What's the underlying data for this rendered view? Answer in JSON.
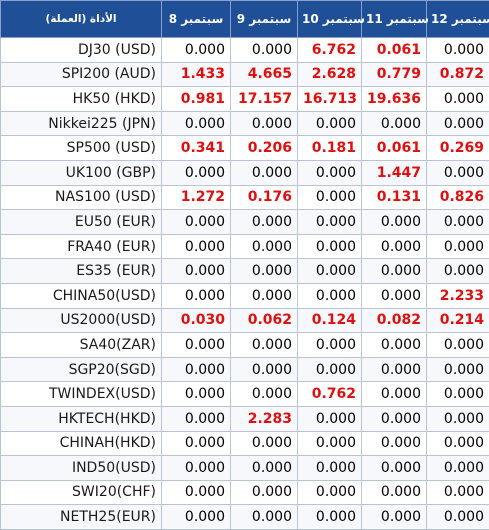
{
  "header": {
    "instrument": "(الأداة (العملة",
    "days": [
      "سبتمبر 8",
      "سبتمبر 9",
      "سبتمبر 10",
      "سبتمبر 11",
      "سبتمبر 12"
    ]
  },
  "colors": {
    "header_bg": "#1f4f96",
    "highlight": "#e01010"
  },
  "rows": [
    {
      "instrument": "DJ30 (USD)",
      "values": [
        "0.000",
        "0.000",
        "6.762",
        "0.061",
        "0.000"
      ],
      "highlight": [
        false,
        false,
        true,
        true,
        false
      ]
    },
    {
      "instrument": "SPI200 (AUD)",
      "values": [
        "1.433",
        "4.665",
        "2.628",
        "0.779",
        "0.872"
      ],
      "highlight": [
        true,
        true,
        true,
        true,
        true
      ]
    },
    {
      "instrument": "HK50 (HKD)",
      "values": [
        "0.981",
        "17.157",
        "16.713",
        "19.636",
        "0.000"
      ],
      "highlight": [
        true,
        true,
        true,
        true,
        false
      ]
    },
    {
      "instrument": "Nikkei225 (JPN)",
      "values": [
        "0.000",
        "0.000",
        "0.000",
        "0.000",
        "0.000"
      ],
      "highlight": [
        false,
        false,
        false,
        false,
        false
      ]
    },
    {
      "instrument": "SP500 (USD)",
      "values": [
        "0.341",
        "0.206",
        "0.181",
        "0.061",
        "0.269"
      ],
      "highlight": [
        true,
        true,
        true,
        true,
        true
      ]
    },
    {
      "instrument": "UK100 (GBP)",
      "values": [
        "0.000",
        "0.000",
        "0.000",
        "1.447",
        "0.000"
      ],
      "highlight": [
        false,
        false,
        false,
        true,
        false
      ]
    },
    {
      "instrument": "NAS100 (USD)",
      "values": [
        "1.272",
        "0.176",
        "0.000",
        "0.131",
        "0.826"
      ],
      "highlight": [
        true,
        true,
        false,
        true,
        true
      ]
    },
    {
      "instrument": "EU50 (EUR)",
      "values": [
        "0.000",
        "0.000",
        "0.000",
        "0.000",
        "0.000"
      ],
      "highlight": [
        false,
        false,
        false,
        false,
        false
      ]
    },
    {
      "instrument": "FRA40 (EUR)",
      "values": [
        "0.000",
        "0.000",
        "0.000",
        "0.000",
        "0.000"
      ],
      "highlight": [
        false,
        false,
        false,
        false,
        false
      ]
    },
    {
      "instrument": "ES35 (EUR)",
      "values": [
        "0.000",
        "0.000",
        "0.000",
        "0.000",
        "0.000"
      ],
      "highlight": [
        false,
        false,
        false,
        false,
        false
      ]
    },
    {
      "instrument": "CHINA50(USD)",
      "values": [
        "0.000",
        "0.000",
        "0.000",
        "0.000",
        "2.233"
      ],
      "highlight": [
        false,
        false,
        false,
        false,
        true
      ]
    },
    {
      "instrument": "US2000(USD)",
      "values": [
        "0.030",
        "0.062",
        "0.124",
        "0.082",
        "0.214"
      ],
      "highlight": [
        true,
        true,
        true,
        true,
        true
      ]
    },
    {
      "instrument": "SA40(ZAR)",
      "values": [
        "0.000",
        "0.000",
        "0.000",
        "0.000",
        "0.000"
      ],
      "highlight": [
        false,
        false,
        false,
        false,
        false
      ]
    },
    {
      "instrument": "SGP20(SGD)",
      "values": [
        "0.000",
        "0.000",
        "0.000",
        "0.000",
        "0.000"
      ],
      "highlight": [
        false,
        false,
        false,
        false,
        false
      ]
    },
    {
      "instrument": "TWINDEX(USD)",
      "values": [
        "0.000",
        "0.000",
        "0.762",
        "0.000",
        "0.000"
      ],
      "highlight": [
        false,
        false,
        true,
        false,
        false
      ]
    },
    {
      "instrument": "HKTECH(HKD)",
      "values": [
        "0.000",
        "2.283",
        "0.000",
        "0.000",
        "0.000"
      ],
      "highlight": [
        false,
        true,
        false,
        false,
        false
      ]
    },
    {
      "instrument": "CHINAH(HKD)",
      "values": [
        "0.000",
        "0.000",
        "0.000",
        "0.000",
        "0.000"
      ],
      "highlight": [
        false,
        false,
        false,
        false,
        false
      ]
    },
    {
      "instrument": "IND50(USD)",
      "values": [
        "0.000",
        "0.000",
        "0.000",
        "0.000",
        "0.000"
      ],
      "highlight": [
        false,
        false,
        false,
        false,
        false
      ]
    },
    {
      "instrument": "SWI20(CHF)",
      "values": [
        "0.000",
        "0.000",
        "0.000",
        "0.000",
        "0.000"
      ],
      "highlight": [
        false,
        false,
        false,
        false,
        false
      ]
    },
    {
      "instrument": "NETH25(EUR)",
      "values": [
        "0.000",
        "0.000",
        "0.000",
        "0.000",
        "0.000"
      ],
      "highlight": [
        false,
        false,
        false,
        false,
        false
      ]
    }
  ]
}
